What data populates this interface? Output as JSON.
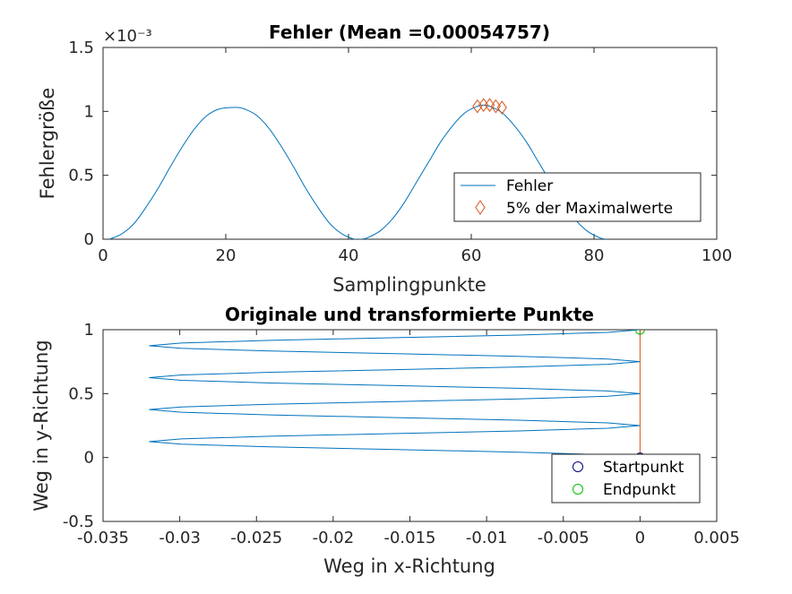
{
  "chart_data": [
    {
      "type": "line",
      "title": "Fehler (Mean =0.00054757)",
      "xlabel": "Samplingpunkte",
      "ylabel": "Fehlergröße",
      "xlim": [
        0,
        100
      ],
      "ylim": [
        0,
        0.0015
      ],
      "xticks": [
        "0",
        "20",
        "40",
        "60",
        "80",
        "100"
      ],
      "yticks": [
        "0",
        "0.5",
        "1",
        "1.5"
      ],
      "exponent_label": "×10⁻³",
      "legend_position": "inside-right",
      "series": [
        {
          "name": "Fehler",
          "color": "#0072BD",
          "style": "line",
          "x": [
            1,
            3,
            5,
            7,
            9,
            11,
            13,
            15,
            17,
            19,
            21,
            22,
            23,
            25,
            27,
            29,
            31,
            33,
            35,
            37,
            39,
            41,
            42,
            43,
            45,
            47,
            49,
            51,
            53,
            55,
            57,
            59,
            61,
            62,
            63,
            65,
            67,
            69,
            71,
            73,
            75,
            77,
            79,
            81,
            82
          ],
          "y": [
            0,
            4e-05,
            0.00012,
            0.00025,
            0.0004,
            0.00057,
            0.00073,
            0.00087,
            0.00097,
            0.00102,
            0.00103,
            0.00103,
            0.00102,
            0.00097,
            0.00087,
            0.00073,
            0.00057,
            0.0004,
            0.00025,
            0.00012,
            4e-05,
            0,
            0,
            1e-05,
            6e-05,
            0.00015,
            0.00028,
            0.00044,
            0.0006,
            0.00076,
            0.00089,
            0.00099,
            0.00104,
            0.00105,
            0.00104,
            0.00099,
            0.00089,
            0.00076,
            0.0006,
            0.00044,
            0.00028,
            0.00015,
            6e-05,
            1e-05,
            0
          ]
        },
        {
          "name": "5% der Maximalwerte",
          "color": "#D95319",
          "style": "diamond",
          "x": [
            61,
            62,
            63,
            64,
            65
          ],
          "y": [
            0.00104,
            0.00105,
            0.00105,
            0.00104,
            0.00103
          ]
        }
      ]
    },
    {
      "type": "line",
      "title": "Originale und transformierte Punkte",
      "xlabel": "Weg in x-Richtung",
      "ylabel": "Weg in y-Richtung",
      "xlim": [
        -0.035,
        0.005
      ],
      "ylim": [
        -0.5,
        1
      ],
      "xticks": [
        "-0.035",
        "-0.03",
        "-0.025",
        "-0.02",
        "-0.015",
        "-0.01",
        "-0.005",
        "0",
        "0.005"
      ],
      "yticks": [
        "-0.5",
        "0",
        "0.5",
        "1"
      ],
      "legend_position": "bottom-right",
      "series": [
        {
          "style": "line",
          "color": "#0072BD",
          "x": [
            0,
            -0.0021,
            -0.0079,
            -0.0159,
            -0.0241,
            -0.0299,
            -0.032,
            -0.0299,
            -0.0241,
            -0.0159,
            -0.0079,
            -0.0021,
            0,
            -0.0021,
            -0.0079,
            -0.0159,
            -0.0241,
            -0.0299,
            -0.032,
            -0.0299,
            -0.0241,
            -0.0159,
            -0.0079,
            -0.0021,
            0
          ],
          "y": [
            0,
            0.0208,
            0.0417,
            0.0625,
            0.0833,
            0.1042,
            0.125,
            0.1458,
            0.1667,
            0.1875,
            0.2083,
            0.2292,
            0.25,
            0.2708,
            0.2917,
            0.3125,
            0.3333,
            0.3542,
            0.375,
            0.3958,
            0.4167,
            0.4375,
            0.4583,
            0.4792,
            0.5
          ]
        },
        {
          "style": "line",
          "color": "#D95319",
          "x": [
            0,
            0
          ],
          "y": [
            0,
            1
          ]
        },
        {
          "name": "Startpunkt",
          "style": "circle",
          "color": "#00007F",
          "x": [
            0
          ],
          "y": [
            0
          ]
        },
        {
          "name": "Endpunkt",
          "style": "circle",
          "color": "#00C000",
          "x": [
            0
          ],
          "y": [
            1
          ]
        }
      ]
    }
  ]
}
